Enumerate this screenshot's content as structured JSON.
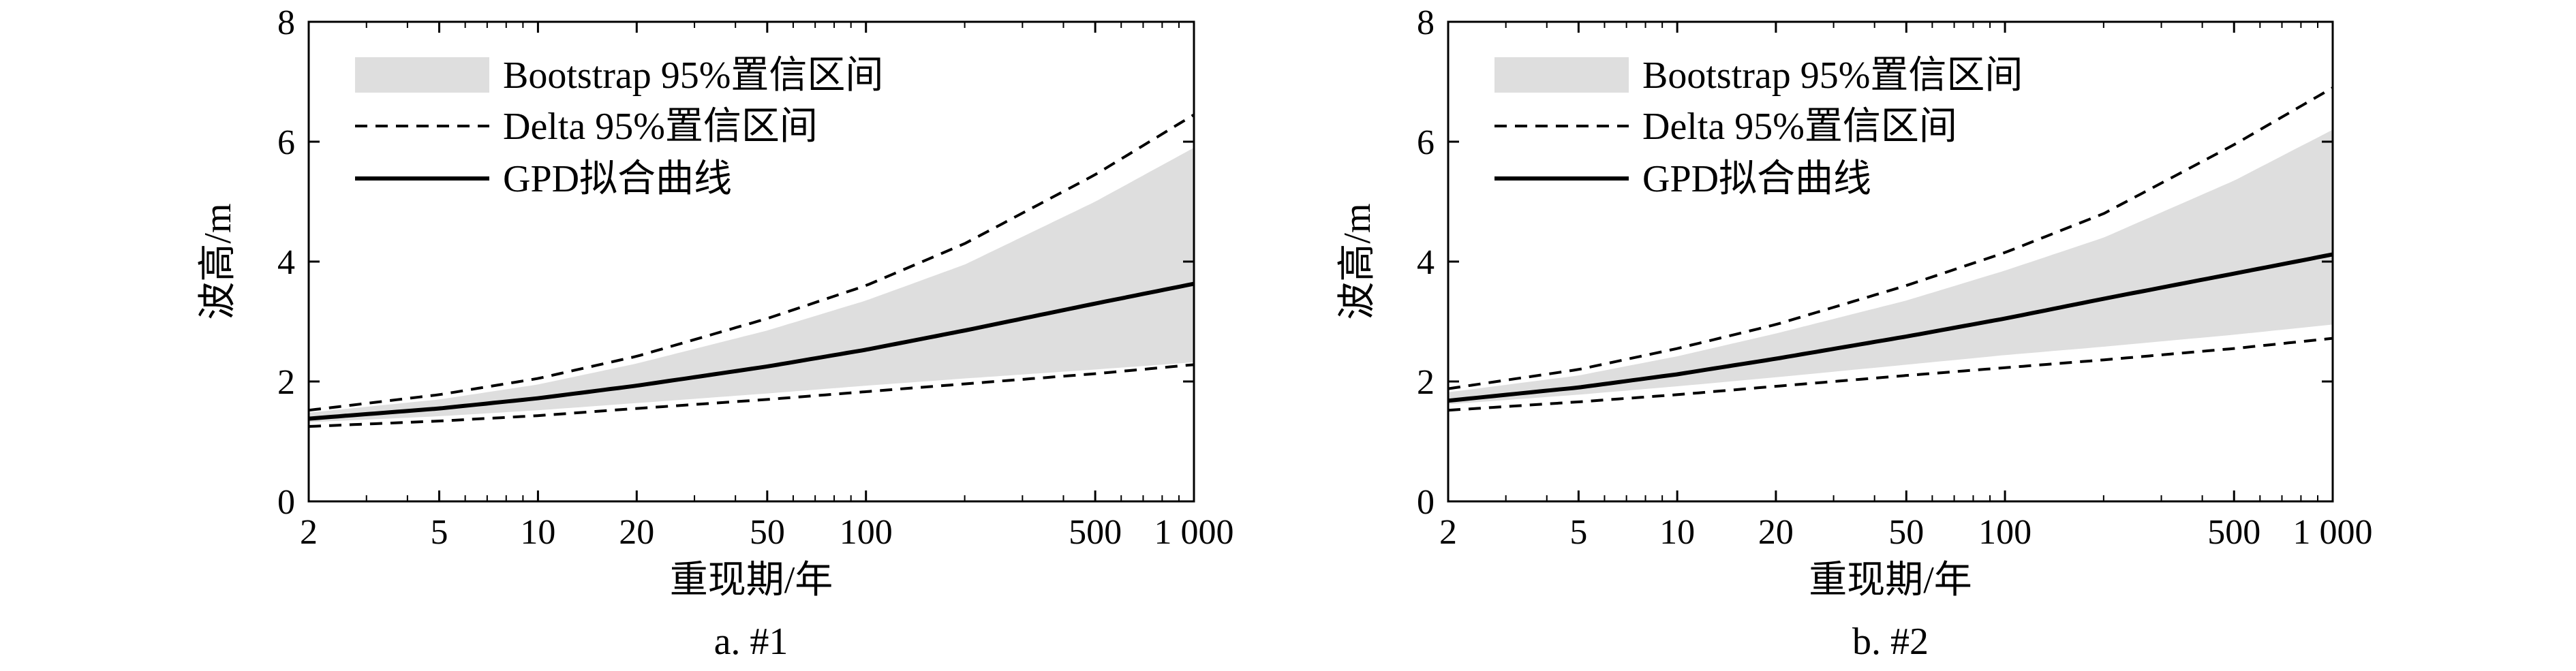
{
  "legend_entries": {
    "bootstrap": "Bootstrap 95%置信区间",
    "delta": "Delta 95%置信区间",
    "gpd": "GPD拟合曲线"
  },
  "colors": {
    "band": "#dedede",
    "line": "#000000"
  },
  "chart_data": [
    {
      "type": "line",
      "caption": "a. #1",
      "xlabel": "重现期/年",
      "ylabel": "波高/m",
      "xscale": "log",
      "xlim": [
        2,
        1000
      ],
      "ylim": [
        0,
        8
      ],
      "xticks": [
        2,
        5,
        10,
        20,
        50,
        100,
        500,
        1000
      ],
      "xtick_labels": [
        "2",
        "5",
        "10",
        "20",
        "50",
        "100",
        "500",
        "1 000"
      ],
      "yticks": [
        0,
        2,
        4,
        6,
        8
      ],
      "ytick_labels": [
        "0",
        "2",
        "4",
        "6",
        "8"
      ],
      "grid": false,
      "legend_position": "top-left",
      "x": [
        2,
        5,
        10,
        20,
        50,
        100,
        200,
        500,
        1000
      ],
      "series": [
        {
          "name": "GPD拟合曲线",
          "style": "solid",
          "values": [
            1.38,
            1.55,
            1.72,
            1.93,
            2.25,
            2.53,
            2.85,
            3.3,
            3.63
          ]
        },
        {
          "name": "Delta 95%置信区间",
          "style": "dashed",
          "upper": [
            1.52,
            1.78,
            2.05,
            2.42,
            3.05,
            3.6,
            4.3,
            5.45,
            6.45
          ],
          "lower": [
            1.25,
            1.34,
            1.43,
            1.55,
            1.7,
            1.83,
            1.96,
            2.13,
            2.28
          ]
        },
        {
          "name": "Bootstrap 95%置信区间",
          "style": "band",
          "upper": [
            1.48,
            1.7,
            1.95,
            2.3,
            2.85,
            3.35,
            3.95,
            5.0,
            5.9
          ],
          "lower": [
            1.32,
            1.42,
            1.52,
            1.64,
            1.8,
            1.93,
            2.05,
            2.2,
            2.32
          ]
        }
      ]
    },
    {
      "type": "line",
      "caption": "b. #2",
      "xlabel": "重现期/年",
      "ylabel": "波高/m",
      "xscale": "log",
      "xlim": [
        2,
        1000
      ],
      "ylim": [
        0,
        8
      ],
      "xticks": [
        2,
        5,
        10,
        20,
        50,
        100,
        500,
        1000
      ],
      "xtick_labels": [
        "2",
        "5",
        "10",
        "20",
        "50",
        "100",
        "500",
        "1 000"
      ],
      "yticks": [
        0,
        2,
        4,
        6,
        8
      ],
      "ytick_labels": [
        "0",
        "2",
        "4",
        "6",
        "8"
      ],
      "grid": false,
      "legend_position": "top-left",
      "x": [
        2,
        5,
        10,
        20,
        50,
        100,
        200,
        500,
        1000
      ],
      "series": [
        {
          "name": "GPD拟合曲线",
          "style": "solid",
          "values": [
            1.68,
            1.9,
            2.12,
            2.38,
            2.75,
            3.05,
            3.38,
            3.8,
            4.12
          ]
        },
        {
          "name": "Delta 95%置信区间",
          "style": "dashed",
          "upper": [
            1.88,
            2.2,
            2.55,
            2.95,
            3.6,
            4.15,
            4.8,
            5.95,
            6.9
          ],
          "lower": [
            1.52,
            1.66,
            1.78,
            1.92,
            2.1,
            2.23,
            2.36,
            2.55,
            2.72
          ]
        },
        {
          "name": "Bootstrap 95%置信区间",
          "style": "band",
          "upper": [
            1.82,
            2.1,
            2.42,
            2.8,
            3.35,
            3.85,
            4.4,
            5.35,
            6.2
          ],
          "lower": [
            1.62,
            1.78,
            1.92,
            2.07,
            2.28,
            2.44,
            2.58,
            2.78,
            2.95
          ]
        }
      ]
    }
  ]
}
